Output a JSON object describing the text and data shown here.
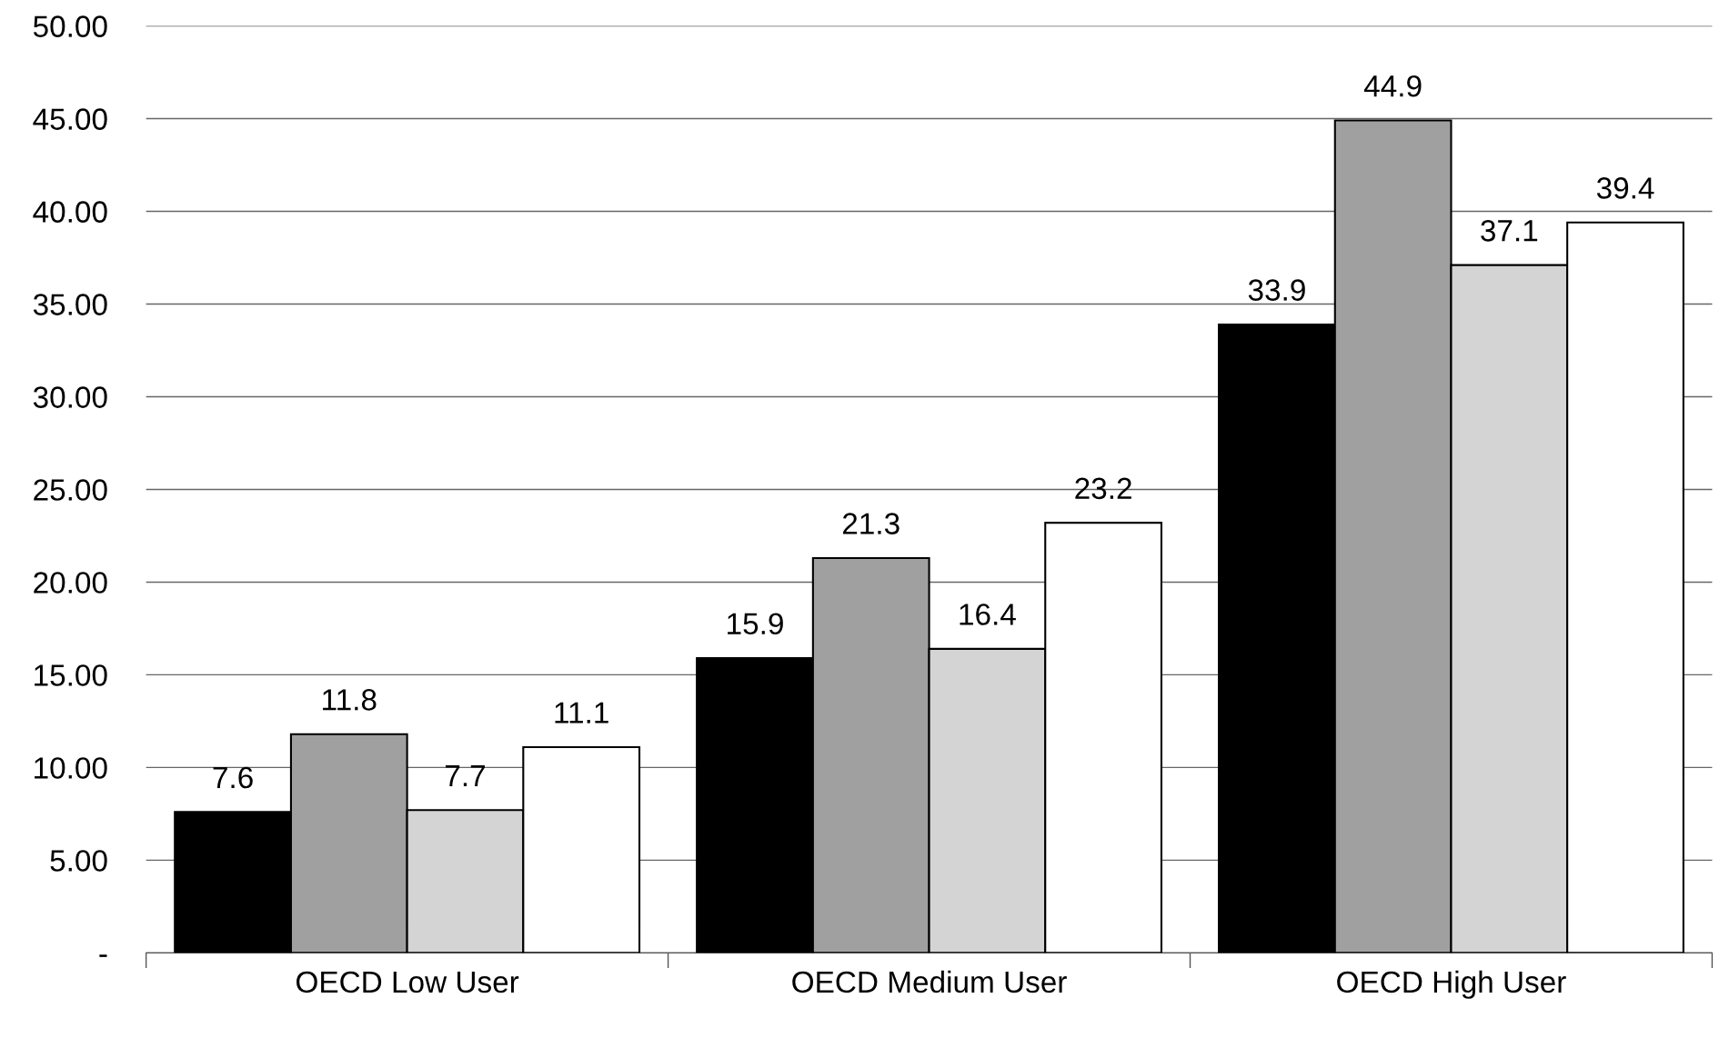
{
  "chart_data": {
    "type": "bar",
    "categories": [
      "OECD Low User",
      "OECD Medium User",
      "OECD High User"
    ],
    "series": [
      {
        "color": "#000000",
        "values": [
          7.6,
          15.9,
          33.9
        ]
      },
      {
        "color": "#a0a0a0",
        "values": [
          11.8,
          21.3,
          44.9
        ]
      },
      {
        "color": "#d4d4d4",
        "values": [
          7.7,
          16.4,
          37.1
        ]
      },
      {
        "color": "#ffffff",
        "values": [
          11.1,
          23.2,
          39.4
        ]
      }
    ],
    "ylim": [
      0,
      50
    ],
    "yticks": [
      {
        "value": 0,
        "label": "-"
      },
      {
        "value": 5,
        "label": "5.00"
      },
      {
        "value": 10,
        "label": "10.00"
      },
      {
        "value": 15,
        "label": "15.00"
      },
      {
        "value": 20,
        "label": "20.00"
      },
      {
        "value": 25,
        "label": "25.00"
      },
      {
        "value": 30,
        "label": "30.00"
      },
      {
        "value": 35,
        "label": "35.00"
      },
      {
        "value": 40,
        "label": "40.00"
      },
      {
        "value": 45,
        "label": "45.00"
      },
      {
        "value": 50,
        "label": "50.00"
      }
    ],
    "grid": "y",
    "data_labels": true,
    "legend": false
  }
}
